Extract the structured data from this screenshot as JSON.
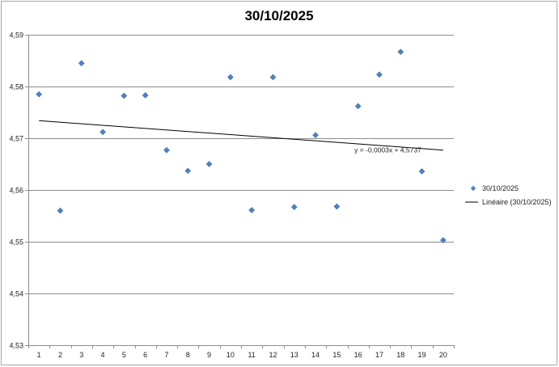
{
  "chart_data": {
    "type": "scatter",
    "title": "30/10/2025",
    "xlabel": "",
    "ylabel": "",
    "xlim": [
      1,
      20
    ],
    "ylim": [
      4.53,
      4.59
    ],
    "yticks": [
      "4,53",
      "4,54",
      "4,55",
      "4,56",
      "4,57",
      "4,58",
      "4,59"
    ],
    "xticks": [
      "1",
      "2",
      "3",
      "4",
      "5",
      "6",
      "7",
      "8",
      "9",
      "10",
      "11",
      "12",
      "13",
      "14",
      "15",
      "16",
      "17",
      "18",
      "19",
      "20"
    ],
    "grid": "horizontal",
    "legend_position": "right",
    "series": [
      {
        "name": "30/10/2025",
        "marker": "diamond",
        "color": "#4f81bd",
        "x": [
          1,
          2,
          3,
          4,
          5,
          6,
          7,
          8,
          9,
          10,
          11,
          12,
          13,
          14,
          15,
          16,
          17,
          18,
          19,
          20
        ],
        "y": [
          4.5785,
          4.556,
          4.5845,
          4.5712,
          4.5782,
          4.5783,
          4.5677,
          4.5637,
          4.565,
          4.5818,
          4.5561,
          4.5818,
          4.5567,
          4.5706,
          4.5568,
          4.5762,
          4.5823,
          4.5867,
          4.5636,
          4.5503
        ]
      }
    ],
    "trendline": {
      "name": "Linéaire (30/10/2025)",
      "type": "linear",
      "slope": -0.0003,
      "intercept": 4.5737,
      "color": "#000000",
      "equation_label": "y = -0,0003x + 4,5737"
    }
  }
}
